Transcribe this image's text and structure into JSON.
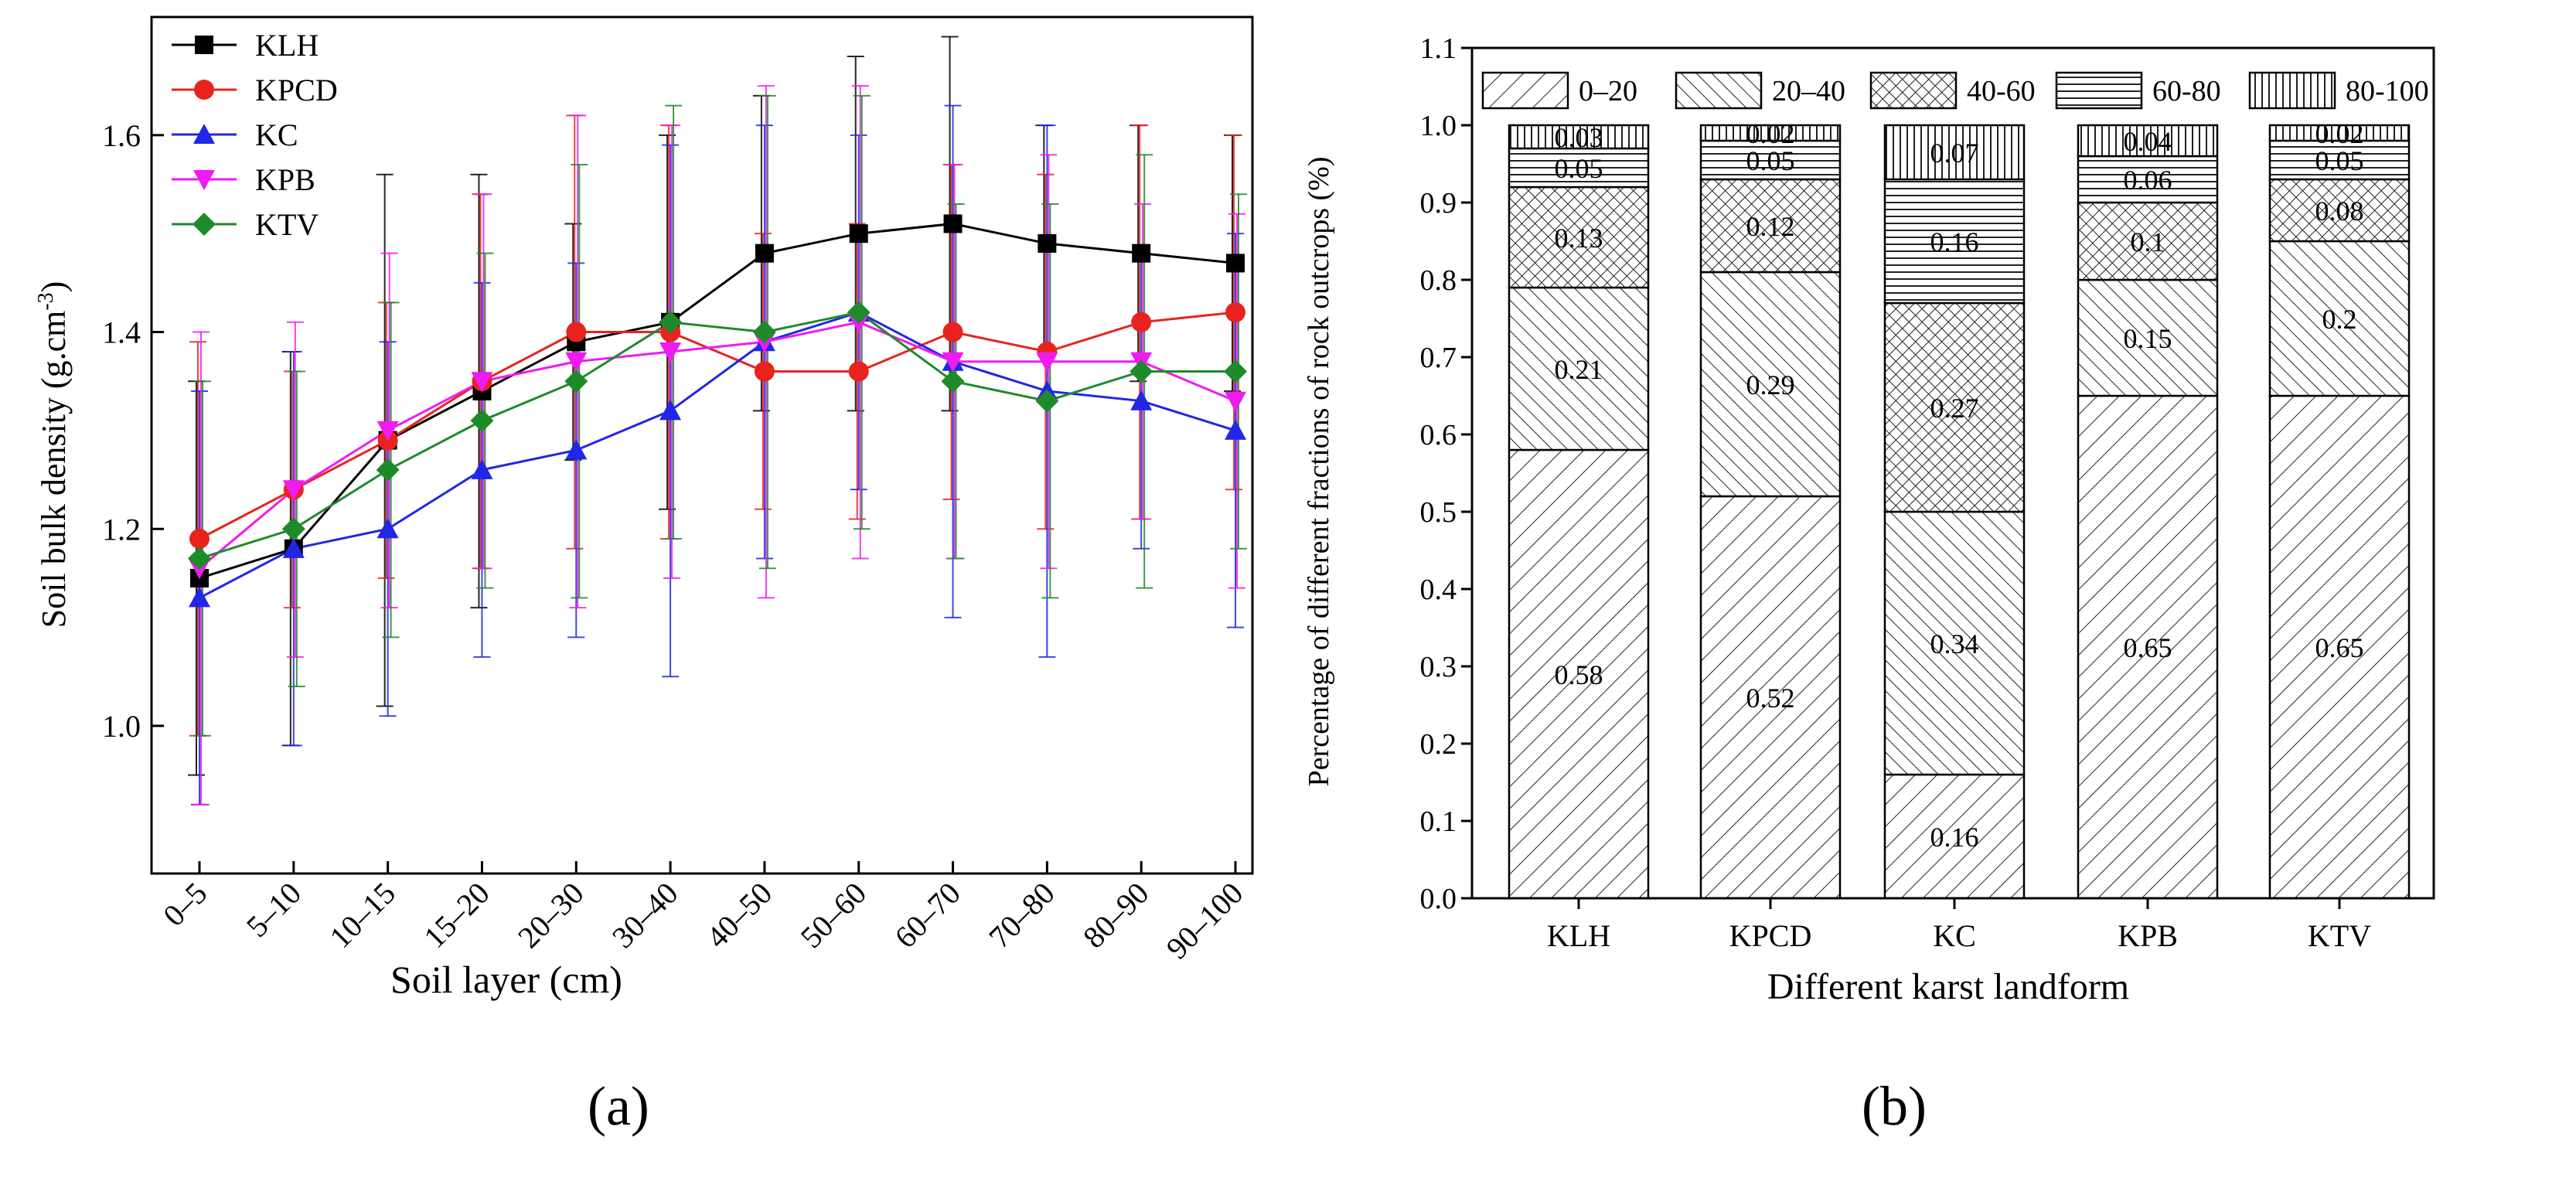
{
  "captions": {
    "a": "(a)",
    "b": "(b)"
  },
  "chart_data": [
    {
      "type": "line",
      "panel": "a",
      "xlabel": "Soil layer (cm)",
      "ylabel": "Soil bulk density (g.cm-3)",
      "ylabel_main": "Soil bulk density (g.cm",
      "ylabel_sup": "-3",
      "ylabel_close": ")",
      "ylim": [
        0.85,
        1.72
      ],
      "yticks": [
        "1.0",
        "1.2",
        "1.4",
        "1.6"
      ],
      "ytick_values": [
        1.0,
        1.2,
        1.4,
        1.6
      ],
      "categories": [
        "0–5",
        "5–10",
        "10–15",
        "15–20",
        "20–30",
        "30–40",
        "40–50",
        "50–60",
        "60–70",
        "70–80",
        "80–90",
        "90–100"
      ],
      "legend_position": "top-left",
      "series": [
        {
          "name": "KLH",
          "color": "#000000",
          "marker": "square",
          "values": [
            1.15,
            1.18,
            1.29,
            1.34,
            1.39,
            1.41,
            1.48,
            1.5,
            1.51,
            1.49,
            1.48,
            1.47
          ],
          "err": [
            0.2,
            0.2,
            0.27,
            0.22,
            0.12,
            0.19,
            0.16,
            0.18,
            0.19,
            0.12,
            0.13,
            0.13
          ]
        },
        {
          "name": "KPCD",
          "color": "#e8231e",
          "marker": "circle",
          "values": [
            1.19,
            1.24,
            1.29,
            1.35,
            1.4,
            1.4,
            1.36,
            1.36,
            1.4,
            1.38,
            1.41,
            1.42
          ],
          "err": [
            0.2,
            0.12,
            0.14,
            0.19,
            0.22,
            0.21,
            0.14,
            0.15,
            0.17,
            0.18,
            0.2,
            0.18
          ]
        },
        {
          "name": "KC",
          "color": "#2226e6",
          "marker": "triangle-up",
          "values": [
            1.13,
            1.18,
            1.2,
            1.26,
            1.28,
            1.32,
            1.39,
            1.42,
            1.37,
            1.34,
            1.33,
            1.3
          ],
          "err": [
            0.21,
            0.2,
            0.19,
            0.19,
            0.19,
            0.27,
            0.22,
            0.18,
            0.26,
            0.27,
            0.15,
            0.2
          ]
        },
        {
          "name": "KPB",
          "color": "#f01bf0",
          "marker": "triangle-down",
          "values": [
            1.16,
            1.24,
            1.3,
            1.35,
            1.37,
            1.38,
            1.39,
            1.41,
            1.37,
            1.37,
            1.37,
            1.33
          ],
          "err": [
            0.24,
            0.17,
            0.18,
            0.19,
            0.25,
            0.23,
            0.26,
            0.24,
            0.2,
            0.21,
            0.16,
            0.19
          ]
        },
        {
          "name": "KTV",
          "color": "#1f8a2a",
          "marker": "diamond",
          "values": [
            1.17,
            1.2,
            1.26,
            1.31,
            1.35,
            1.41,
            1.4,
            1.42,
            1.35,
            1.33,
            1.36,
            1.36
          ],
          "err": [
            0.18,
            0.16,
            0.17,
            0.17,
            0.22,
            0.22,
            0.24,
            0.22,
            0.18,
            0.2,
            0.22,
            0.18
          ]
        }
      ]
    },
    {
      "type": "bar",
      "stacked": true,
      "panel": "b",
      "xlabel": "Different karst landform",
      "ylabel": "Percentage of different fractions of rock outcrops (%)",
      "ylim": [
        0.0,
        1.1
      ],
      "yticks": [
        "0.0",
        "0.1",
        "0.2",
        "0.3",
        "0.4",
        "0.5",
        "0.6",
        "0.7",
        "0.8",
        "0.9",
        "1.0",
        "1.1"
      ],
      "ytick_values": [
        0.0,
        0.1,
        0.2,
        0.3,
        0.4,
        0.5,
        0.6,
        0.7,
        0.8,
        0.9,
        1.0,
        1.1
      ],
      "categories": [
        "KLH",
        "KPCD",
        "KC",
        "KPB",
        "KTV"
      ],
      "legend_position": "top",
      "series": [
        {
          "name": "0–20",
          "pattern": "p-diag-wide",
          "values": [
            0.58,
            0.52,
            0.16,
            0.65,
            0.65
          ],
          "labels": [
            "0.58",
            "0.52",
            "0.16",
            "0.65",
            "0.65"
          ]
        },
        {
          "name": "20–40",
          "pattern": "p-back-diag",
          "values": [
            0.21,
            0.29,
            0.34,
            0.15,
            0.2
          ],
          "labels": [
            "0.21",
            "0.29",
            "0.34",
            "0.15",
            "0.2"
          ]
        },
        {
          "name": "40-60",
          "pattern": "p-cross",
          "values": [
            0.13,
            0.12,
            0.27,
            0.1,
            0.08
          ],
          "labels": [
            "0.13",
            "0.12",
            "0.27",
            "0.1",
            "0.08"
          ]
        },
        {
          "name": "60-80",
          "pattern": "p-horiz",
          "values": [
            0.05,
            0.05,
            0.16,
            0.06,
            0.05
          ],
          "labels": [
            "0.05",
            "0.05",
            "0.16",
            "0.06",
            "0.05"
          ]
        },
        {
          "name": "80-100",
          "pattern": "p-vert",
          "values": [
            0.03,
            0.02,
            0.07,
            0.04,
            0.02
          ],
          "labels": [
            "0.03",
            "0.02",
            "0.07",
            "0.04",
            "0.02"
          ]
        }
      ]
    }
  ]
}
